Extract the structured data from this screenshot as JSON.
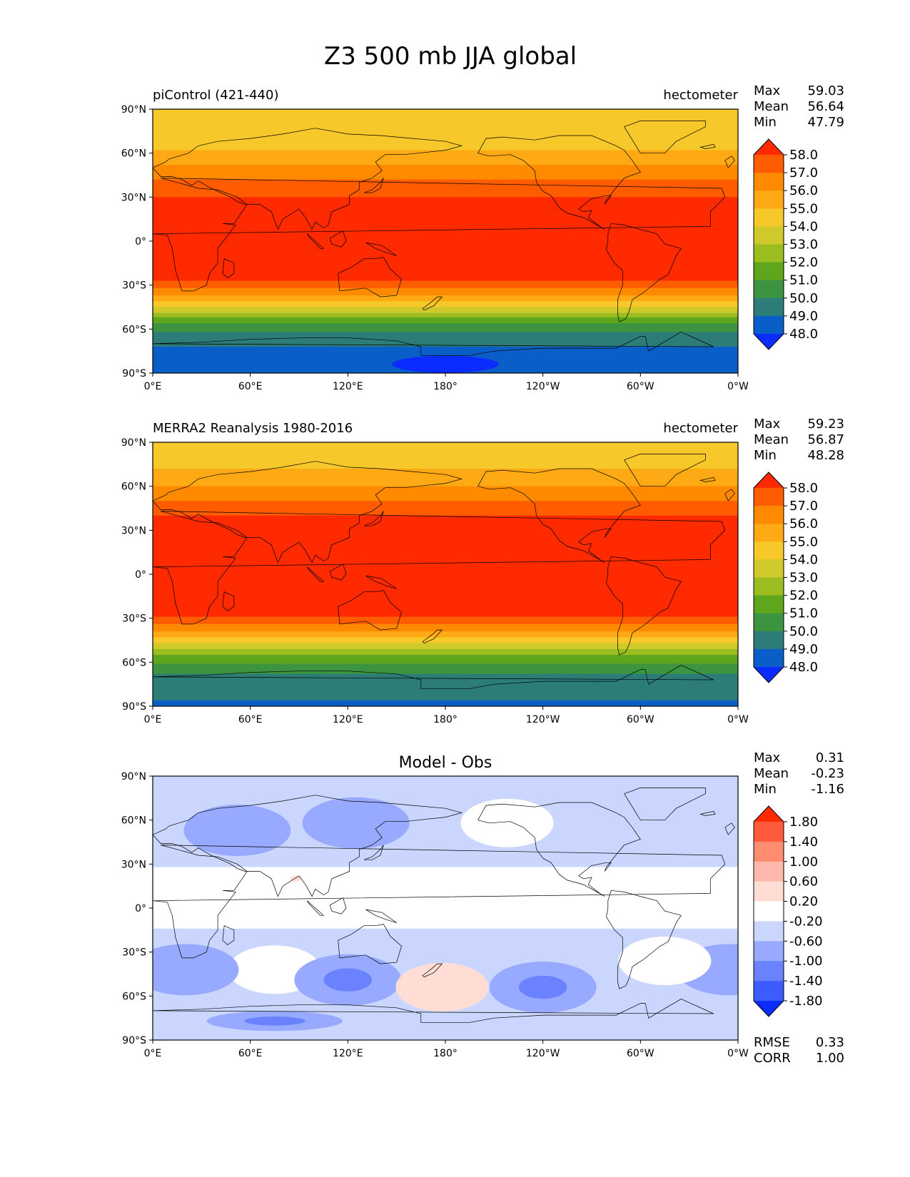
{
  "figure": {
    "title": "Z3 500 mb JJA global"
  },
  "axes": {
    "lon_ticks": [
      "0°E",
      "60°E",
      "120°E",
      "180°",
      "120°W",
      "60°W",
      "0°W"
    ],
    "lat_ticks": [
      "90°N",
      "60°N",
      "30°N",
      "0°",
      "30°S",
      "60°S",
      "90°S"
    ]
  },
  "chart_data": [
    {
      "type": "heatmap",
      "panel": "model",
      "title": "piControl (421-440)",
      "units": "hectometer",
      "stats": {
        "max_label": "Max",
        "max": "59.03",
        "mean_label": "Mean",
        "mean": "56.64",
        "min_label": "Min",
        "min": "47.79"
      },
      "colorbar": {
        "ticks": [
          "58.0",
          "57.0",
          "56.0",
          "55.0",
          "54.0",
          "53.0",
          "52.0",
          "51.0",
          "50.0",
          "49.0",
          "48.0"
        ],
        "colors": [
          "#ff2a00",
          "#ff5c00",
          "#ff8a00",
          "#ffaa14",
          "#f7c82a",
          "#cfc92b",
          "#9cbd1f",
          "#5ea61c",
          "#3c9440",
          "#2c7d78",
          "#0a5ec8",
          "#0a2cff"
        ]
      },
      "bands": [
        {
          "lat": 88,
          "value": 54.5
        },
        {
          "lat": 72,
          "value": 54.5
        },
        {
          "lat": 62,
          "value": 55.5
        },
        {
          "lat": 52,
          "value": 56.5
        },
        {
          "lat": 42,
          "value": 57.5
        },
        {
          "lat": 30,
          "value": 58.5
        },
        {
          "lat": 0,
          "value": 58.5
        },
        {
          "lat": -20,
          "value": 58.5
        },
        {
          "lat": -27,
          "value": 57.5
        },
        {
          "lat": -32,
          "value": 56.5
        },
        {
          "lat": -37,
          "value": 55.5
        },
        {
          "lat": -41,
          "value": 54.5
        },
        {
          "lat": -45,
          "value": 53.5
        },
        {
          "lat": -49,
          "value": 52.5
        },
        {
          "lat": -52,
          "value": 51.5
        },
        {
          "lat": -56,
          "value": 50.5
        },
        {
          "lat": -62,
          "value": 49.5
        },
        {
          "lat": -72,
          "value": 48.5
        },
        {
          "lat": -90,
          "value": 48.5
        }
      ],
      "features": [
        {
          "label": "minimum below 48.0 near Antarctica",
          "lon": 180,
          "lat": -84,
          "value": 47.8
        }
      ]
    },
    {
      "type": "heatmap",
      "panel": "obs",
      "title": "MERRA2 Reanalysis 1980-2016",
      "units": "hectometer",
      "stats": {
        "max_label": "Max",
        "max": "59.23",
        "mean_label": "Mean",
        "mean": "56.87",
        "min_label": "Min",
        "min": "48.28"
      },
      "colorbar": {
        "ticks": [
          "58.0",
          "57.0",
          "56.0",
          "55.0",
          "54.0",
          "53.0",
          "52.0",
          "51.0",
          "50.0",
          "49.0",
          "48.0"
        ],
        "colors": [
          "#ff2a00",
          "#ff5c00",
          "#ff8a00",
          "#ffaa14",
          "#f7c82a",
          "#cfc92b",
          "#9cbd1f",
          "#5ea61c",
          "#3c9440",
          "#2c7d78",
          "#0a5ec8",
          "#0a2cff"
        ]
      },
      "bands": [
        {
          "lat": 88,
          "value": 54.5
        },
        {
          "lat": 72,
          "value": 55.5
        },
        {
          "lat": 60,
          "value": 56.5
        },
        {
          "lat": 50,
          "value": 57.5
        },
        {
          "lat": 40,
          "value": 58.5
        },
        {
          "lat": 0,
          "value": 58.5
        },
        {
          "lat": -22,
          "value": 58.5
        },
        {
          "lat": -29,
          "value": 57.5
        },
        {
          "lat": -34,
          "value": 56.5
        },
        {
          "lat": -39,
          "value": 55.5
        },
        {
          "lat": -43,
          "value": 54.5
        },
        {
          "lat": -47,
          "value": 53.5
        },
        {
          "lat": -51,
          "value": 52.5
        },
        {
          "lat": -55,
          "value": 51.5
        },
        {
          "lat": -61,
          "value": 50.5
        },
        {
          "lat": -68,
          "value": 49.5
        },
        {
          "lat": -86,
          "value": 48.5
        },
        {
          "lat": -90,
          "value": 48.5
        }
      ],
      "features": []
    },
    {
      "type": "heatmap",
      "panel": "difference",
      "title": "Model - Obs",
      "units": "",
      "stats": {
        "max_label": "Max",
        "max": "0.31",
        "mean_label": "Mean",
        "mean": "-0.23",
        "min_label": "Min",
        "min": "-1.16"
      },
      "metrics": {
        "rmse_label": "RMSE",
        "rmse": "0.33",
        "corr_label": "CORR",
        "corr": "1.00"
      },
      "colorbar": {
        "ticks": [
          "1.80",
          "1.40",
          "1.00",
          "0.60",
          "0.20",
          "-0.20",
          "-0.60",
          "-1.00",
          "-1.40",
          "-1.80"
        ],
        "colors": [
          "#ff2a00",
          "#ff5a3c",
          "#ff8c70",
          "#ffb9ac",
          "#ffdcd4",
          "#ffffff",
          "#cbd6ff",
          "#98aaff",
          "#6a82ff",
          "#3d5cff",
          "#0a2cff"
        ]
      },
      "bands": [
        {
          "lat": 78,
          "value": -0.4
        },
        {
          "lat": 28,
          "value": 0.0
        },
        {
          "lat": -14,
          "value": -0.4
        },
        {
          "lat": -90,
          "value": -0.4
        }
      ],
      "features": [
        {
          "label": "low",
          "lon": 52,
          "lat": 53,
          "value": -0.8
        },
        {
          "label": "low",
          "lon": 125,
          "lat": 58,
          "value": -0.8
        },
        {
          "label": "high",
          "lon": 218,
          "lat": 58,
          "value": 0.0
        },
        {
          "label": "high",
          "lon": 75,
          "lat": -42,
          "value": 0.0
        },
        {
          "label": "low",
          "lon": 88,
          "lat": 20,
          "value": 0.4
        },
        {
          "label": "low",
          "lon": 20,
          "lat": -42,
          "value": -0.8
        },
        {
          "label": "low",
          "lon": 355,
          "lat": -42,
          "value": -0.8
        },
        {
          "label": "low",
          "lon": 120,
          "lat": -49,
          "value": -0.8
        },
        {
          "label": "low",
          "lon": 120,
          "lat": -49,
          "value": -1.2
        },
        {
          "label": "high",
          "lon": 178,
          "lat": -54,
          "value": 0.0
        },
        {
          "label": "high",
          "lon": 178,
          "lat": -54,
          "value": 0.4
        },
        {
          "label": "low",
          "lon": 240,
          "lat": -54,
          "value": -0.8
        },
        {
          "label": "low",
          "lon": 240,
          "lat": -54,
          "value": -1.2
        },
        {
          "label": "high",
          "lon": 315,
          "lat": -36,
          "value": 0.0
        },
        {
          "label": "low",
          "lon": 75,
          "lat": -77,
          "value": -0.8
        },
        {
          "label": "low",
          "lon": 75,
          "lat": -77,
          "value": -1.2
        }
      ]
    }
  ]
}
